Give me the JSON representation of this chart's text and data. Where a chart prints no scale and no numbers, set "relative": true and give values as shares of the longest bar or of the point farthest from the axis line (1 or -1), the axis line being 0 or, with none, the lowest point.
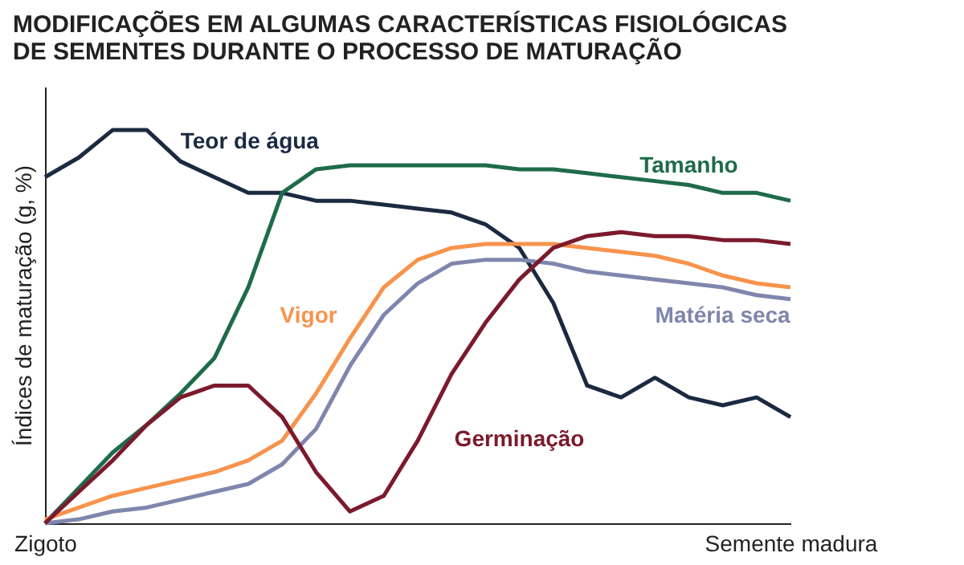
{
  "chart_data": {
    "type": "line",
    "title": "MODIFICAÇÕES EM ALGUMAS CARACTERÍSTICAS FISIOLÓGICAS DE SEMENTES DURANTE O PROCESSO DE MATURAÇÃO",
    "ylabel": "Índices de maturação (g, %)",
    "relative": true,
    "grid": false,
    "marker": "none",
    "line_style": "solid",
    "categories": [
      "Zigoto",
      null,
      null,
      null,
      null,
      null,
      null,
      null,
      null,
      null,
      null,
      null,
      null,
      null,
      null,
      null,
      null,
      null,
      null,
      null,
      null,
      null,
      "Semente madura"
    ],
    "series": [
      {
        "name": "Teor de água",
        "color": "#1b2a41",
        "values": [
          0.88,
          0.93,
          1.0,
          1.0,
          0.92,
          0.88,
          0.84,
          0.84,
          0.82,
          0.82,
          0.81,
          0.8,
          0.79,
          0.76,
          0.7,
          0.56,
          0.35,
          0.32,
          0.37,
          0.32,
          0.3,
          0.32,
          0.27
        ]
      },
      {
        "name": "Tamanho",
        "color": "#1e6b4a",
        "values": [
          0.0,
          0.09,
          0.18,
          0.25,
          0.33,
          0.42,
          0.6,
          0.84,
          0.9,
          0.91,
          0.91,
          0.91,
          0.91,
          0.91,
          0.9,
          0.9,
          0.89,
          0.88,
          0.87,
          0.86,
          0.84,
          0.84,
          0.82
        ]
      },
      {
        "name": "Vigor",
        "color": "#f7934c",
        "values": [
          0.01,
          0.04,
          0.07,
          0.09,
          0.11,
          0.13,
          0.16,
          0.21,
          0.33,
          0.47,
          0.6,
          0.67,
          0.7,
          0.71,
          0.71,
          0.71,
          0.7,
          0.69,
          0.68,
          0.66,
          0.63,
          0.61,
          0.6
        ]
      },
      {
        "name": "Matéria seca",
        "color": "#7f86ad",
        "values": [
          0.0,
          0.01,
          0.03,
          0.04,
          0.06,
          0.08,
          0.1,
          0.15,
          0.24,
          0.4,
          0.53,
          0.61,
          0.66,
          0.67,
          0.67,
          0.66,
          0.64,
          0.63,
          0.62,
          0.61,
          0.6,
          0.58,
          0.57
        ]
      },
      {
        "name": "Germinação",
        "color": "#7b1a2c",
        "values": [
          0.0,
          0.08,
          0.16,
          0.25,
          0.32,
          0.35,
          0.35,
          0.27,
          0.13,
          0.03,
          0.07,
          0.21,
          0.38,
          0.51,
          0.62,
          0.7,
          0.73,
          0.74,
          0.73,
          0.73,
          0.72,
          0.72,
          0.71
        ]
      }
    ]
  }
}
